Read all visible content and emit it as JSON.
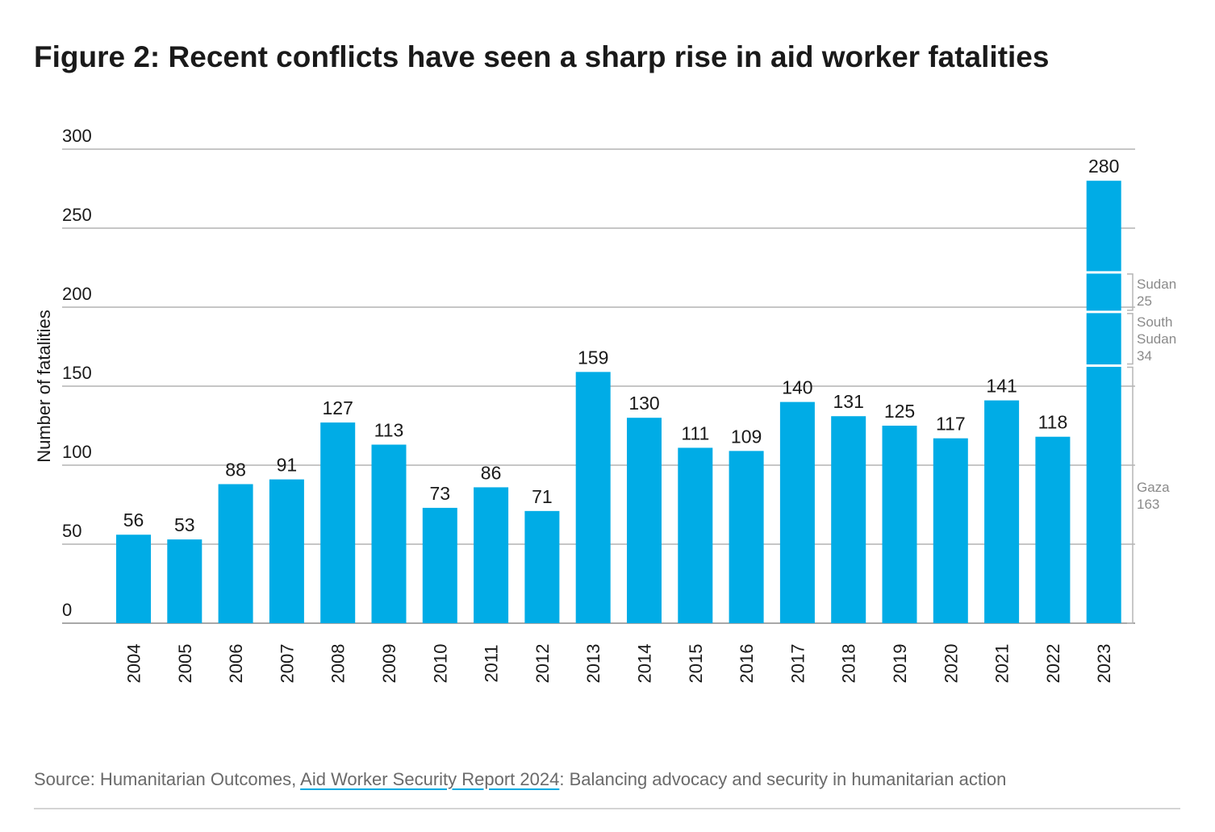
{
  "title": "Figure 2: Recent conflicts have seen a sharp rise in aid worker fatalities",
  "source": {
    "prefix": "Source: Humanitarian Outcomes, ",
    "link_text": "Aid Worker Security Report 2024",
    "suffix": ": Balancing advocacy and security in humanitarian action"
  },
  "colors": {
    "bar": "#00ace6",
    "grid": "#8c8c8c",
    "annotation_text": "#8a8a8a",
    "bracket": "#b5b5b5",
    "link_underline": "#00a9e0"
  },
  "chart_data": {
    "type": "bar",
    "ylabel": "Number of fatalities",
    "xlabel": "",
    "ylim": [
      0,
      300
    ],
    "yticks": [
      0,
      50,
      100,
      150,
      200,
      250,
      300
    ],
    "grid": true,
    "categories": [
      "2004",
      "2005",
      "2006",
      "2007",
      "2008",
      "2009",
      "2010",
      "2011",
      "2012",
      "2013",
      "2014",
      "2015",
      "2016",
      "2017",
      "2018",
      "2019",
      "2020",
      "2021",
      "2022",
      "2023"
    ],
    "values": [
      56,
      53,
      88,
      91,
      127,
      113,
      73,
      86,
      71,
      159,
      130,
      111,
      109,
      140,
      131,
      125,
      117,
      141,
      118,
      280
    ],
    "breakdown_2023": [
      {
        "label": "Gaza",
        "value": 163
      },
      {
        "label": "South Sudan",
        "value": 34
      },
      {
        "label": "Sudan",
        "value": 25
      }
    ],
    "breakdown_text": {
      "gaza": [
        "Gaza",
        "163"
      ],
      "south_sudan": [
        "South",
        "Sudan",
        "34"
      ],
      "sudan": [
        "Sudan",
        "25"
      ]
    }
  }
}
